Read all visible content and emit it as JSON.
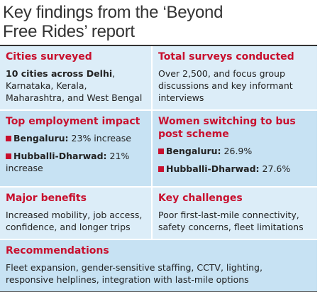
{
  "title": "Key findings from the ‘Beyond Free Rides’ report",
  "rows": [
    {
      "cells": [
        {
          "heading": "Cities surveyed",
          "lead": "10 cities across Delhi",
          "text": ", Karnataka, Kerala, Maharashtra, and West Bengal"
        },
        {
          "heading": "Total surveys conducted",
          "text": "Over 2,500, and focus group discussions and key informant interviews"
        }
      ]
    },
    {
      "cells": [
        {
          "heading": "Top employment impact",
          "items": [
            {
              "label": "Bengaluru:",
              "text": "23% increase"
            },
            {
              "label": "Hubballi-Dharwad:",
              "text": "21% increase"
            }
          ]
        },
        {
          "heading": "Women switching to bus post scheme",
          "items": [
            {
              "label": "Bengaluru:",
              "text": "26.9%"
            },
            {
              "label": "Hubballi-Dharwad:",
              "text": "27.6%"
            }
          ]
        }
      ]
    },
    {
      "cells": [
        {
          "heading": "Major benefits",
          "text": "Increased mobility, job access, confidence, and longer trips"
        },
        {
          "heading": "Key challenges",
          "text": "Poor first-last-mile connectivity, safety concerns, fleet limitations"
        }
      ]
    },
    {
      "cells": [
        {
          "heading": "Recommendations",
          "text": "Fleet expansion, gender-sensitive staffing, CCTV, lighting, responsive helplines, integration with last-mile options"
        }
      ]
    }
  ]
}
